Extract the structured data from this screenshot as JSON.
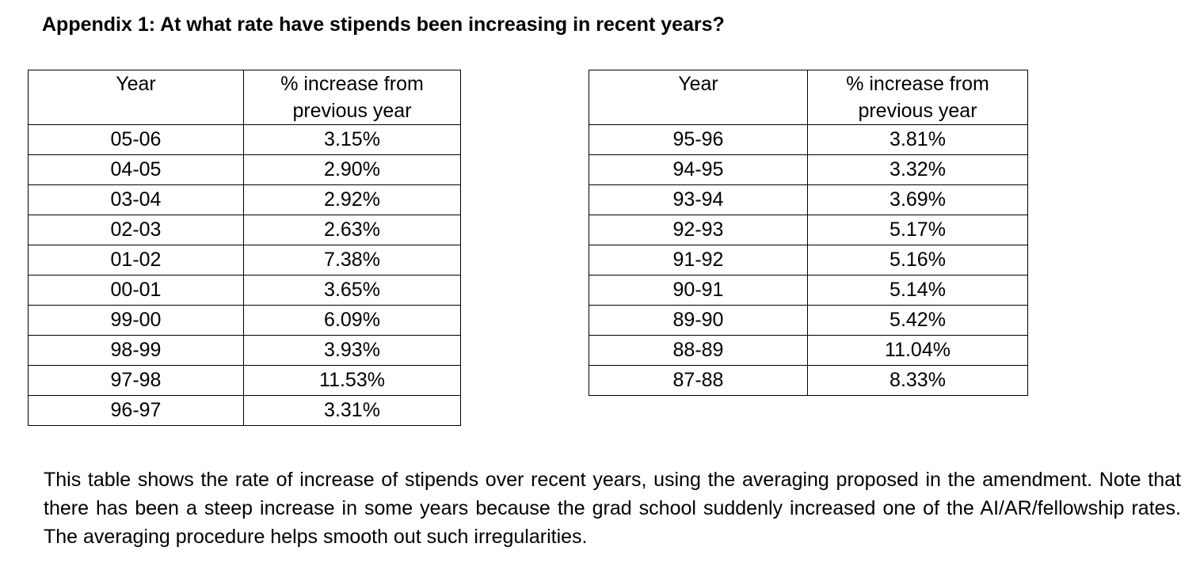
{
  "heading": "Appendix 1: At what rate have stipends been increasing in recent years?",
  "table_left": {
    "header_year": "Year",
    "header_pct": "% increase from previous year",
    "rows": [
      {
        "year": "05-06",
        "pct": "3.15%"
      },
      {
        "year": "04-05",
        "pct": "2.90%"
      },
      {
        "year": "03-04",
        "pct": "2.92%"
      },
      {
        "year": "02-03",
        "pct": "2.63%"
      },
      {
        "year": "01-02",
        "pct": "7.38%"
      },
      {
        "year": "00-01",
        "pct": "3.65%"
      },
      {
        "year": "99-00",
        "pct": "6.09%"
      },
      {
        "year": "98-99",
        "pct": "3.93%"
      },
      {
        "year": "97-98",
        "pct": "11.53%"
      },
      {
        "year": "96-97",
        "pct": "3.31%"
      }
    ]
  },
  "table_right": {
    "header_year": "Year",
    "header_pct": "% increase from previous year",
    "rows": [
      {
        "year": "95-96",
        "pct": "3.81%"
      },
      {
        "year": "94-95",
        "pct": "3.32%"
      },
      {
        "year": "93-94",
        "pct": "3.69%"
      },
      {
        "year": "92-93",
        "pct": "5.17%"
      },
      {
        "year": "91-92",
        "pct": "5.16%"
      },
      {
        "year": "90-91",
        "pct": "5.14%"
      },
      {
        "year": "89-90",
        "pct": "5.42%"
      },
      {
        "year": "88-89",
        "pct": "11.04%"
      },
      {
        "year": "87-88",
        "pct": "8.33%"
      }
    ]
  },
  "note": "This table shows the rate of increase of stipends over recent years, using the averaging proposed in the amendment. Note that there has been a steep increase in some years because the grad school suddenly increased one of the AI/AR/fellowship rates. The averaging procedure helps smooth out such irregularities."
}
